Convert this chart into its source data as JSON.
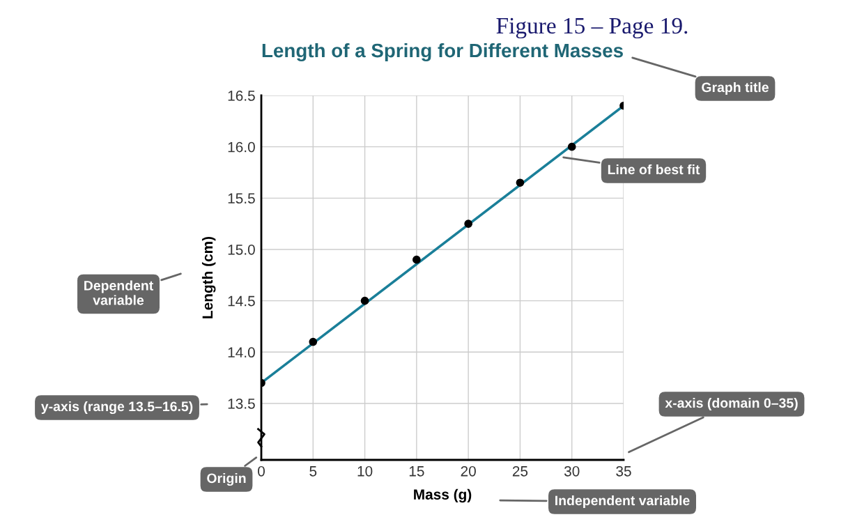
{
  "chart_data": {
    "type": "scatter",
    "title": "Length of a Spring for Different Masses",
    "xlabel": "Mass (g)",
    "ylabel": "Length (cm)",
    "x": [
      0,
      5,
      10,
      15,
      20,
      25,
      30,
      35
    ],
    "series": [
      {
        "color": "#000000",
        "marker": "circle",
        "values": [
          13.7,
          14.1,
          14.5,
          14.9,
          15.25,
          15.65,
          16.0,
          16.4
        ]
      },
      {
        "type": "line",
        "color": "#1a7f99",
        "x": [
          0,
          35
        ],
        "values": [
          13.7,
          16.4
        ]
      }
    ],
    "xlim": [
      0,
      35
    ],
    "xticks": [
      0,
      5,
      10,
      15,
      20,
      25,
      30,
      35
    ],
    "ylim": [
      12.95,
      16.5
    ],
    "yticks": [
      {
        "value": 13.5,
        "label": "13.5"
      },
      {
        "value": 14,
        "label": "14.0"
      },
      {
        "value": 14.5,
        "label": "14.5"
      },
      {
        "value": 15,
        "label": "15.0"
      },
      {
        "value": 15.5,
        "label": "15.5"
      },
      {
        "value": 16,
        "label": "16.0"
      },
      {
        "value": 16.5,
        "label": "16.5"
      }
    ],
    "grid": true,
    "line_style": "solid",
    "annotations": [
      "Figure 15 – Page 19.",
      "Graph title",
      {
        "text": "Line of best fit",
        "x": 29,
        "y": 15.9
      },
      "Dependent\nvariable",
      "y-axis (range 13.5–16.5)",
      "x-axis (domain 0–35)",
      "Origin",
      "Independent variable"
    ]
  }
}
